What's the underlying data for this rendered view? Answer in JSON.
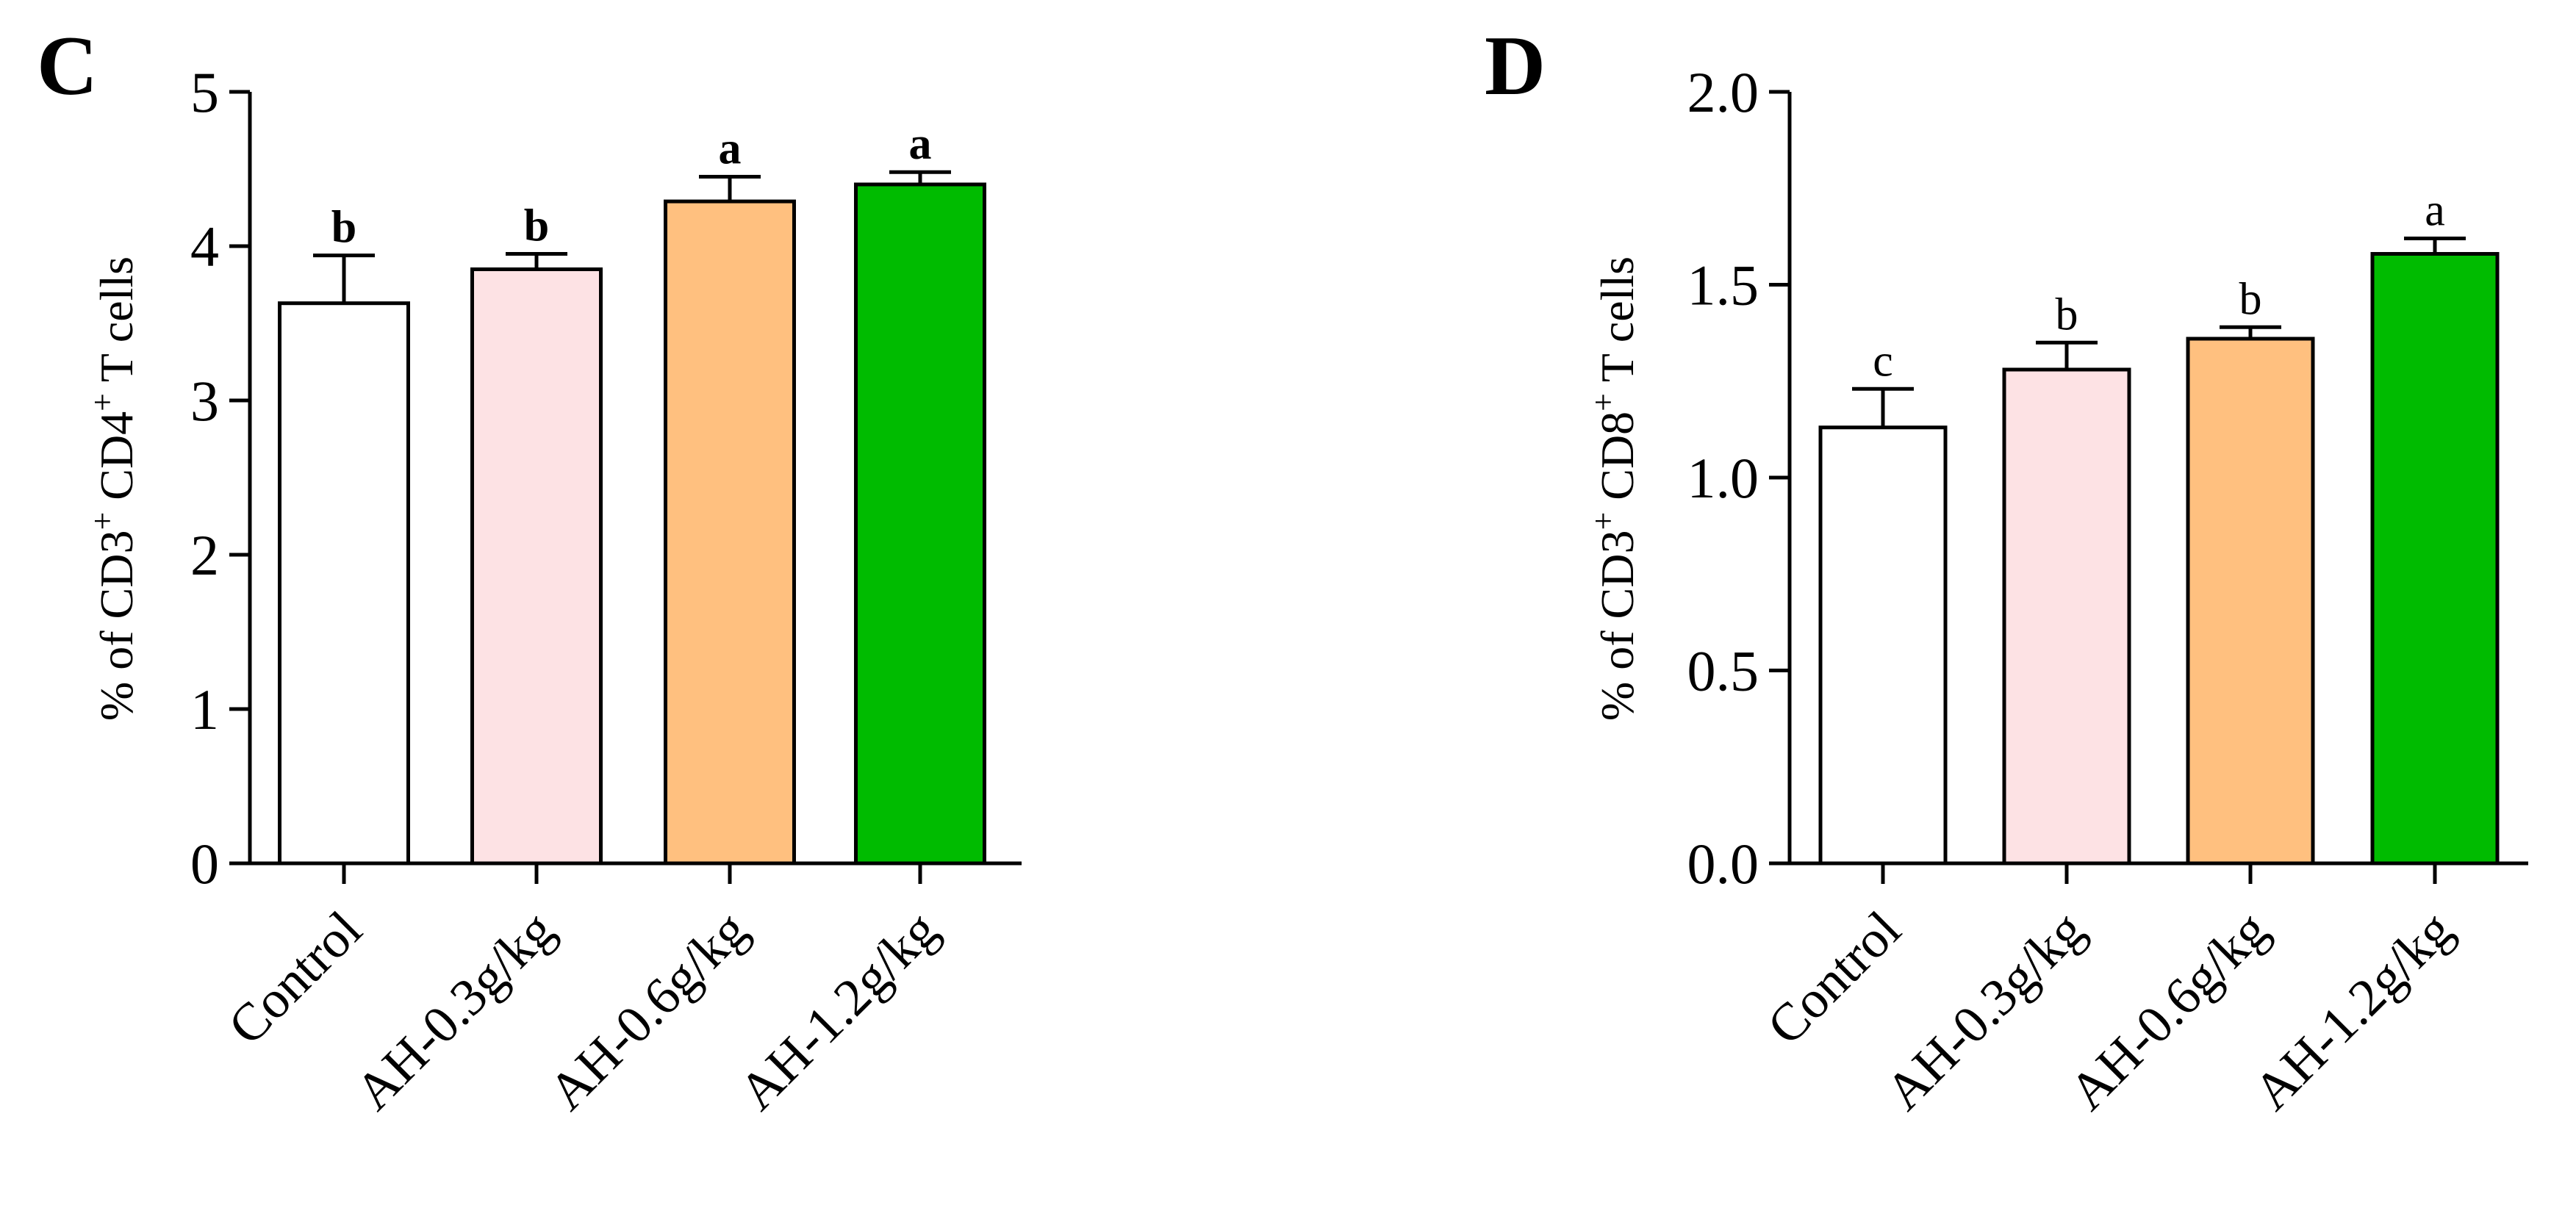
{
  "chart_data": [
    {
      "panel_label": "C",
      "type": "bar",
      "ylabel_parts": [
        "% of CD3",
        "+",
        " CD4",
        "+",
        " T cells"
      ],
      "categories": [
        "Control",
        "AH-0.3g/kg",
        "AH-0.6g/kg",
        "AH-1.2g/kg"
      ],
      "values": [
        3.63,
        3.85,
        4.29,
        4.4
      ],
      "errors": [
        0.31,
        0.1,
        0.16,
        0.08
      ],
      "significance": [
        "b",
        "b",
        "a",
        "a"
      ],
      "significance_bold": true,
      "ylim": [
        0,
        5
      ],
      "yticks": [
        0,
        1,
        2,
        3,
        4,
        5
      ],
      "ytick_labels": [
        "0",
        "1",
        "2",
        "3",
        "4",
        "5"
      ],
      "colors": [
        "#ffffff",
        "#fde2e4",
        "#ffc07f",
        "#00bb00"
      ]
    },
    {
      "panel_label": "D",
      "type": "bar",
      "ylabel_parts": [
        "% of CD3",
        "+",
        " CD8",
        "+",
        " T cells"
      ],
      "categories": [
        "Control",
        "AH-0.3g/kg",
        "AH-0.6g/kg",
        "AH-1.2g/kg"
      ],
      "values": [
        1.13,
        1.28,
        1.36,
        1.58
      ],
      "errors": [
        0.1,
        0.07,
        0.03,
        0.04
      ],
      "significance": [
        "c",
        "b",
        "b",
        "a"
      ],
      "significance_bold": false,
      "ylim": [
        0,
        2.0
      ],
      "yticks": [
        0,
        0.5,
        1.0,
        1.5,
        2.0
      ],
      "ytick_labels": [
        "0.0",
        "0.5",
        "1.0",
        "1.5",
        "2.0"
      ],
      "colors": [
        "#ffffff",
        "#fde2e4",
        "#ffc07f",
        "#00bb00"
      ]
    }
  ]
}
